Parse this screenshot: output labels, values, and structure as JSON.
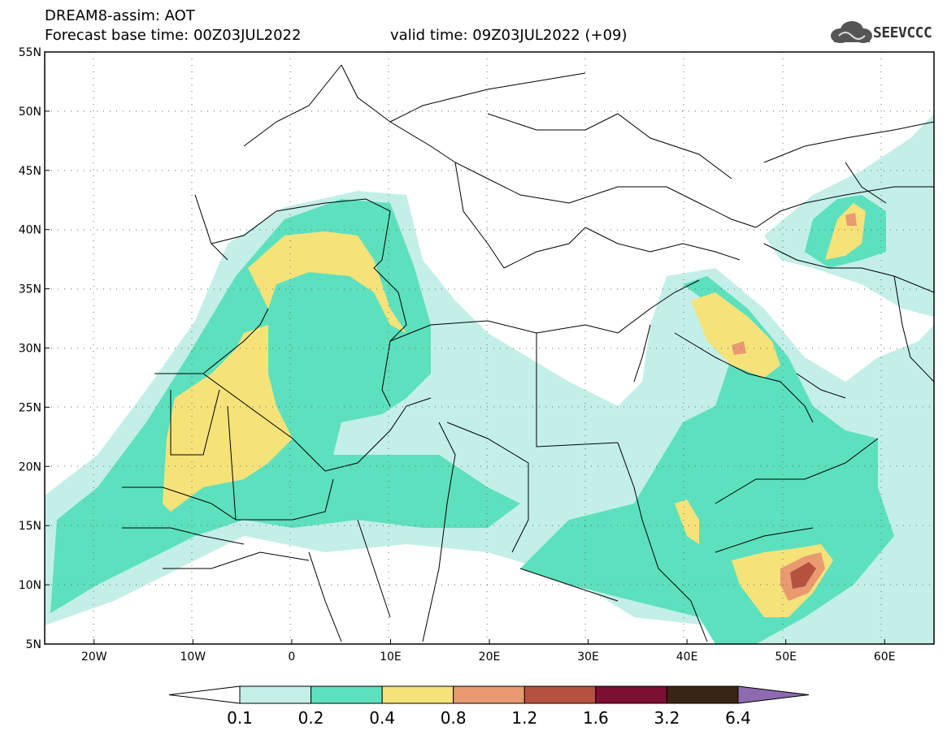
{
  "header": {
    "line1": "DREAM8-assim: AOT",
    "line2": "Forecast base time: 00Z03JUL2022",
    "line3": "valid time: 09Z03JUL2022 (+09)"
  },
  "logo": {
    "text": "SEEVCCC",
    "icon": "cloud-icon"
  },
  "map": {
    "lat_labels": [
      "55N",
      "50N",
      "45N",
      "40N",
      "35N",
      "30N",
      "25N",
      "20N",
      "15N",
      "10N",
      "5N"
    ],
    "lon_labels": [
      "20W",
      "10W",
      "0",
      "10E",
      "20E",
      "30E",
      "40E",
      "50E",
      "60E"
    ],
    "lon_range": [
      -25,
      65
    ],
    "lat_range": [
      5,
      55
    ],
    "gridlines": "dotted"
  },
  "colorbar": {
    "labels": [
      "0.1",
      "0.2",
      "0.4",
      "0.8",
      "1.2",
      "1.6",
      "3.2",
      "6.4"
    ],
    "colors": [
      "#c3efe8",
      "#5de0bd",
      "#f5e37a",
      "#e99a70",
      "#b5523f",
      "#7d0f32",
      "#3b2413",
      "#8e6bb0"
    ],
    "under_color": "#ffffff"
  }
}
